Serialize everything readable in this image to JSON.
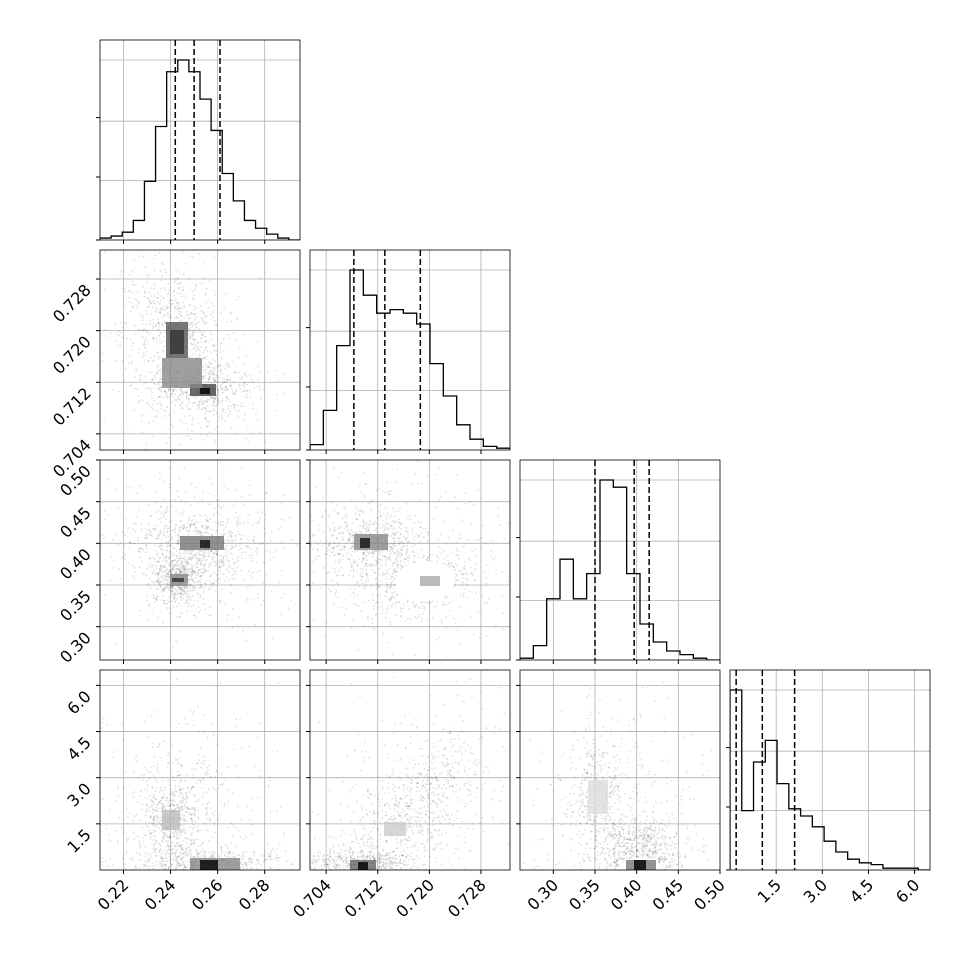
{
  "chart_data": {
    "type": "corner",
    "params": [
      {
        "range": [
          0.21,
          0.295
        ],
        "ticks": [
          0.22,
          0.24,
          0.26,
          0.28
        ],
        "tick_labels": [
          "0.22",
          "0.24",
          "0.26",
          "0.28"
        ],
        "quantiles": [
          0.242,
          0.25,
          0.261
        ]
      },
      {
        "range": [
          0.7015,
          0.7325
        ],
        "ticks": [
          0.704,
          0.712,
          0.72,
          0.728
        ],
        "tick_labels": [
          "0.704",
          "0.712",
          "0.720",
          "0.728"
        ],
        "quantiles": [
          0.7083,
          0.7131,
          0.7186
        ]
      },
      {
        "range": [
          0.26,
          0.5
        ],
        "ticks": [
          0.3,
          0.35,
          0.4,
          0.45,
          0.5
        ],
        "tick_labels": [
          "0.30",
          "0.35",
          "0.40",
          "0.45",
          "0.50"
        ],
        "quantiles": [
          0.35,
          0.397,
          0.415
        ]
      },
      {
        "range": [
          0.0,
          6.5
        ],
        "ticks": [
          1.5,
          3.0,
          4.5,
          6.0
        ],
        "tick_labels": [
          "1.5",
          "3.0",
          "4.5",
          "6.0"
        ],
        "quantiles": [
          0.2,
          1.05,
          2.1
        ]
      }
    ],
    "histograms": [
      {
        "values": [
          1,
          2,
          4,
          10,
          30,
          58,
          86,
          92,
          86,
          72,
          56,
          34,
          20,
          10,
          6,
          3,
          1,
          0
        ]
      },
      {
        "values": [
          3,
          22,
          58,
          100,
          86,
          76,
          78,
          76,
          70,
          48,
          30,
          14,
          6,
          2,
          1
        ]
      },
      {
        "values": [
          1,
          8,
          34,
          56,
          34,
          48,
          100,
          96,
          48,
          20,
          10,
          5,
          3,
          1,
          0
        ]
      },
      {
        "values": [
          100,
          33,
          60,
          72,
          48,
          34,
          30,
          24,
          16,
          10,
          6,
          4,
          3,
          1,
          1,
          1,
          0
        ]
      }
    ],
    "contour_levels": 4,
    "grid": true
  }
}
